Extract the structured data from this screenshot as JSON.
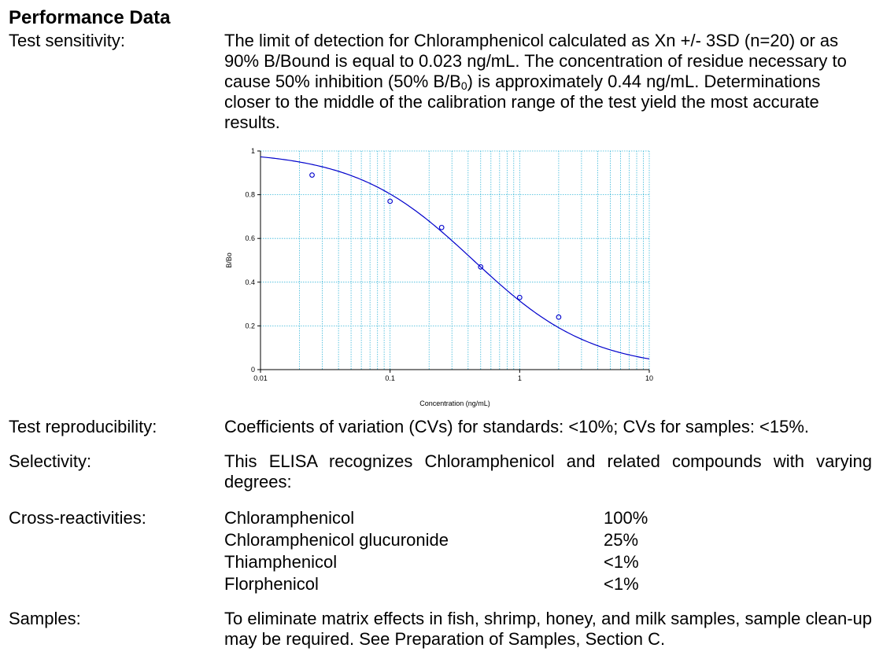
{
  "title": "Performance Data",
  "sensitivity": {
    "label": "Test sensitivity:",
    "line1": "The limit of detection for Chloramphenicol calculated as Xn +/- 3SD (n=20) or as",
    "line2": "90% B/Bound is equal to 0.023 ng/mL.  The concentration of residue necessary to",
    "line3_pre": "cause 50% inhibition (50% B/B",
    "line3_sub": "0",
    "line3_post": ") is approximately 0.44 ng/mL.  Determinations",
    "line4": "closer to the middle of the calibration range of the test yield the most accurate",
    "line5": "results."
  },
  "chart_data": {
    "type": "scatter",
    "title": "",
    "xlabel": "Concentration (ng/mL)",
    "ylabel": "B/Bo",
    "xscale": "log",
    "xlim": [
      0.01,
      10
    ],
    "ylim": [
      0,
      1
    ],
    "xticks": [
      "0.01",
      "0.1",
      "1",
      "10"
    ],
    "yticks": [
      "0",
      "0.2",
      "0.4",
      "0.6",
      "0.8",
      "1"
    ],
    "grid": true,
    "points": [
      {
        "x": 0.025,
        "y": 0.89
      },
      {
        "x": 0.1,
        "y": 0.77
      },
      {
        "x": 0.25,
        "y": 0.65
      },
      {
        "x": 0.5,
        "y": 0.47
      },
      {
        "x": 1,
        "y": 0.33
      },
      {
        "x": 2,
        "y": 0.24
      }
    ],
    "fit": {
      "model": "4PL",
      "top": 1.0,
      "bottom": 0.0,
      "ic50": 0.44,
      "slope": 0.95
    },
    "colors": {
      "line": "#0000cc",
      "points": "#0000cc",
      "grid": "#39b7d9"
    }
  },
  "reproducibility": {
    "label": "Test reproducibility:",
    "text": "Coefficients of variation (CVs) for standards: <10%; CVs for samples: <15%."
  },
  "selectivity": {
    "label": "Selectivity:",
    "text": "This ELISA recognizes Chloramphenicol and related compounds with varying degrees:"
  },
  "cross": {
    "label": "Cross-reactivities:",
    "rows": [
      {
        "compound": "Chloramphenicol",
        "value": "100%"
      },
      {
        "compound": "Chloramphenicol glucuronide",
        "value": "25%"
      },
      {
        "compound": "Thiamphenicol",
        "value": "<1%"
      },
      {
        "compound": "Florphenicol",
        "value": "<1%"
      }
    ]
  },
  "samples": {
    "label": "Samples:",
    "text": "To eliminate matrix effects in fish, shrimp, honey, and milk samples, sample clean-up may be required.  See Preparation of Samples, Section C."
  }
}
